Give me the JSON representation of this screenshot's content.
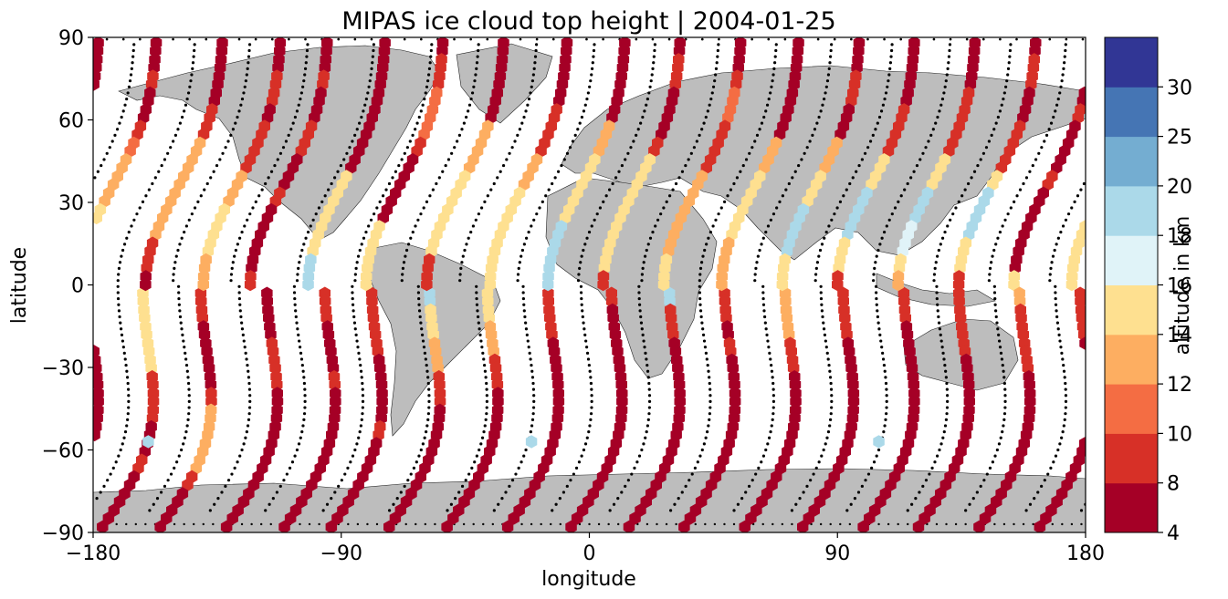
{
  "chart_data": {
    "type": "scatter",
    "title": "MIPAS ice cloud top height | 2004-01-25",
    "xlabel": "longitude",
    "ylabel": "latitude",
    "xlim": [
      -180,
      180
    ],
    "ylim": [
      -90,
      90
    ],
    "xticks": [
      -180,
      -90,
      0,
      90,
      180
    ],
    "yticks": [
      -90,
      -60,
      -30,
      0,
      30,
      60,
      90
    ],
    "xtick_labels": [
      "−180",
      "−90",
      "0",
      "90",
      "180"
    ],
    "ytick_labels": [
      "−90",
      "−60",
      "−30",
      "0",
      "30",
      "60",
      "90"
    ],
    "grid": false,
    "land_color": "#bdbdbd",
    "colorbar": {
      "label": "altitude in km",
      "bounds": [
        4,
        8,
        10,
        12,
        14,
        16,
        18,
        20,
        25,
        30
      ],
      "colors": [
        "#a50026",
        "#d73027",
        "#f46d43",
        "#fdae61",
        "#fee090",
        "#e0f3f8",
        "#abd9e9",
        "#74add1",
        "#4575b4",
        "#313695"
      ],
      "tick_labels": [
        "4",
        "8",
        "10",
        "12",
        "14",
        "16",
        "18",
        "20",
        "25",
        "30"
      ]
    },
    "tracks": [
      {
        "lon0": -178,
        "color_pattern": [
          0,
          0,
          0,
          0,
          1,
          0,
          0,
          0,
          1,
          0,
          0,
          0,
          0,
          0,
          4,
          4,
          4,
          4,
          4,
          4,
          1,
          1,
          1,
          0,
          0,
          1,
          0,
          0,
          0,
          0
        ]
      },
      {
        "lon0": -157,
        "color_pattern": [
          0,
          0,
          1,
          0,
          0,
          1,
          2,
          3,
          3,
          3,
          4,
          4,
          4,
          4,
          4,
          1,
          1,
          0,
          0,
          0,
          0,
          1,
          3,
          3,
          3,
          3,
          1,
          0,
          0,
          0
        ]
      },
      {
        "lon0": -133,
        "color_pattern": [
          0,
          0,
          0,
          0,
          1,
          1,
          3,
          3,
          3,
          3,
          3,
          3,
          1,
          1,
          0,
          0,
          0,
          0,
          1,
          1,
          1,
          0,
          0,
          0,
          0,
          0,
          0,
          0,
          0,
          0
        ]
      },
      {
        "lon0": -112,
        "color_pattern": [
          0,
          0,
          1,
          1,
          0,
          1,
          1,
          1,
          3,
          3,
          4,
          4,
          4,
          3,
          3,
          1,
          1,
          0,
          0,
          0,
          1,
          0,
          0,
          0,
          0,
          0,
          0,
          0,
          0,
          0
        ]
      },
      {
        "lon0": -95,
        "color_pattern": [
          0,
          0,
          1,
          0,
          0,
          1,
          1,
          0,
          0,
          1,
          0,
          0,
          0,
          0,
          1,
          1,
          1,
          1,
          1,
          0,
          0,
          0,
          0,
          1,
          0,
          0,
          0,
          0,
          0,
          0
        ]
      },
      {
        "lon0": -74,
        "color_pattern": [
          0,
          0,
          0,
          0,
          0,
          0,
          0,
          0,
          4,
          4,
          4,
          4,
          4,
          6,
          6,
          6,
          4,
          4,
          3,
          3,
          1,
          1,
          0,
          0,
          0,
          0,
          0,
          0,
          0,
          0
        ]
      },
      {
        "lon0": -53,
        "color_pattern": [
          0,
          1,
          1,
          2,
          2,
          2,
          1,
          0,
          0,
          0,
          0,
          4,
          4,
          4,
          4,
          4,
          4,
          3,
          3,
          1,
          1,
          0,
          0,
          0,
          0,
          0,
          0,
          0,
          0,
          0
        ]
      },
      {
        "lon0": -31,
        "color_pattern": [
          0,
          0,
          0,
          0,
          0,
          3,
          3,
          3,
          4,
          4,
          4,
          4,
          4,
          1,
          1,
          1,
          1,
          1,
          0,
          0,
          0,
          0,
          0,
          0,
          0,
          0,
          0,
          0,
          0,
          0
        ]
      },
      {
        "lon0": -8,
        "color_pattern": [
          0,
          0,
          0,
          0,
          1,
          1,
          1,
          3,
          3,
          4,
          4,
          4,
          4,
          4,
          4,
          1,
          0,
          0,
          0,
          0,
          0,
          0,
          0,
          0,
          0,
          0,
          0,
          0,
          0,
          0
        ]
      },
      {
        "lon0": 13,
        "color_pattern": [
          0,
          0,
          0,
          0,
          0,
          3,
          3,
          4,
          4,
          4,
          4,
          6,
          6,
          6,
          6,
          6,
          1,
          1,
          0,
          0,
          0,
          0,
          0,
          0,
          0,
          0,
          0,
          0,
          0,
          0
        ]
      },
      {
        "lon0": 33,
        "color_pattern": [
          0,
          1,
          1,
          0,
          0,
          0,
          1,
          4,
          4,
          4,
          4,
          4,
          4,
          4,
          1,
          1,
          1,
          0,
          1,
          0,
          0,
          0,
          0,
          0,
          0,
          0,
          0,
          0,
          0,
          0
        ]
      },
      {
        "lon0": 55,
        "color_pattern": [
          0,
          0,
          1,
          2,
          2,
          1,
          1,
          1,
          3,
          3,
          3,
          3,
          3,
          4,
          4,
          3,
          3,
          3,
          1,
          1,
          0,
          0,
          0,
          0,
          0,
          0,
          0,
          0,
          0,
          0
        ]
      },
      {
        "lon0": 76,
        "color_pattern": [
          0,
          0,
          0,
          0,
          0,
          0,
          3,
          3,
          4,
          4,
          4,
          4,
          3,
          3,
          3,
          1,
          1,
          1,
          0,
          0,
          0,
          0,
          0,
          0,
          0,
          0,
          0,
          0,
          0,
          0
        ]
      },
      {
        "lon0": 98,
        "color_pattern": [
          0,
          0,
          1,
          1,
          0,
          0,
          3,
          3,
          4,
          4,
          6,
          6,
          6,
          4,
          4,
          1,
          1,
          0,
          0,
          0,
          0,
          0,
          0,
          0,
          0,
          0,
          0,
          0,
          0,
          0
        ]
      },
      {
        "lon0": 118,
        "color_pattern": [
          0,
          0,
          0,
          0,
          1,
          1,
          1,
          4,
          4,
          6,
          6,
          6,
          4,
          4,
          1,
          1,
          1,
          1,
          1,
          0,
          0,
          0,
          0,
          0,
          0,
          0,
          0,
          0,
          0,
          0
        ]
      },
      {
        "lon0": 140,
        "color_pattern": [
          0,
          0,
          0,
          1,
          1,
          1,
          1,
          4,
          4,
          6,
          6,
          5,
          5,
          4,
          3,
          3,
          1,
          1,
          1,
          1,
          0,
          0,
          0,
          0,
          0,
          0,
          0,
          0,
          0,
          0
        ]
      },
      {
        "lon0": 162,
        "color_pattern": [
          0,
          1,
          1,
          0,
          0,
          1,
          1,
          1,
          4,
          6,
          6,
          6,
          4,
          4,
          1,
          1,
          1,
          1,
          0,
          0,
          0,
          0,
          0,
          0,
          0,
          0,
          0,
          0,
          0,
          0
        ]
      }
    ],
    "isolated_points": [
      {
        "lon": -160,
        "lat": -57,
        "cls": 6
      },
      {
        "lon": -21,
        "lat": -57,
        "cls": 6
      },
      {
        "lon": 105,
        "lat": -57,
        "cls": 6
      }
    ]
  }
}
